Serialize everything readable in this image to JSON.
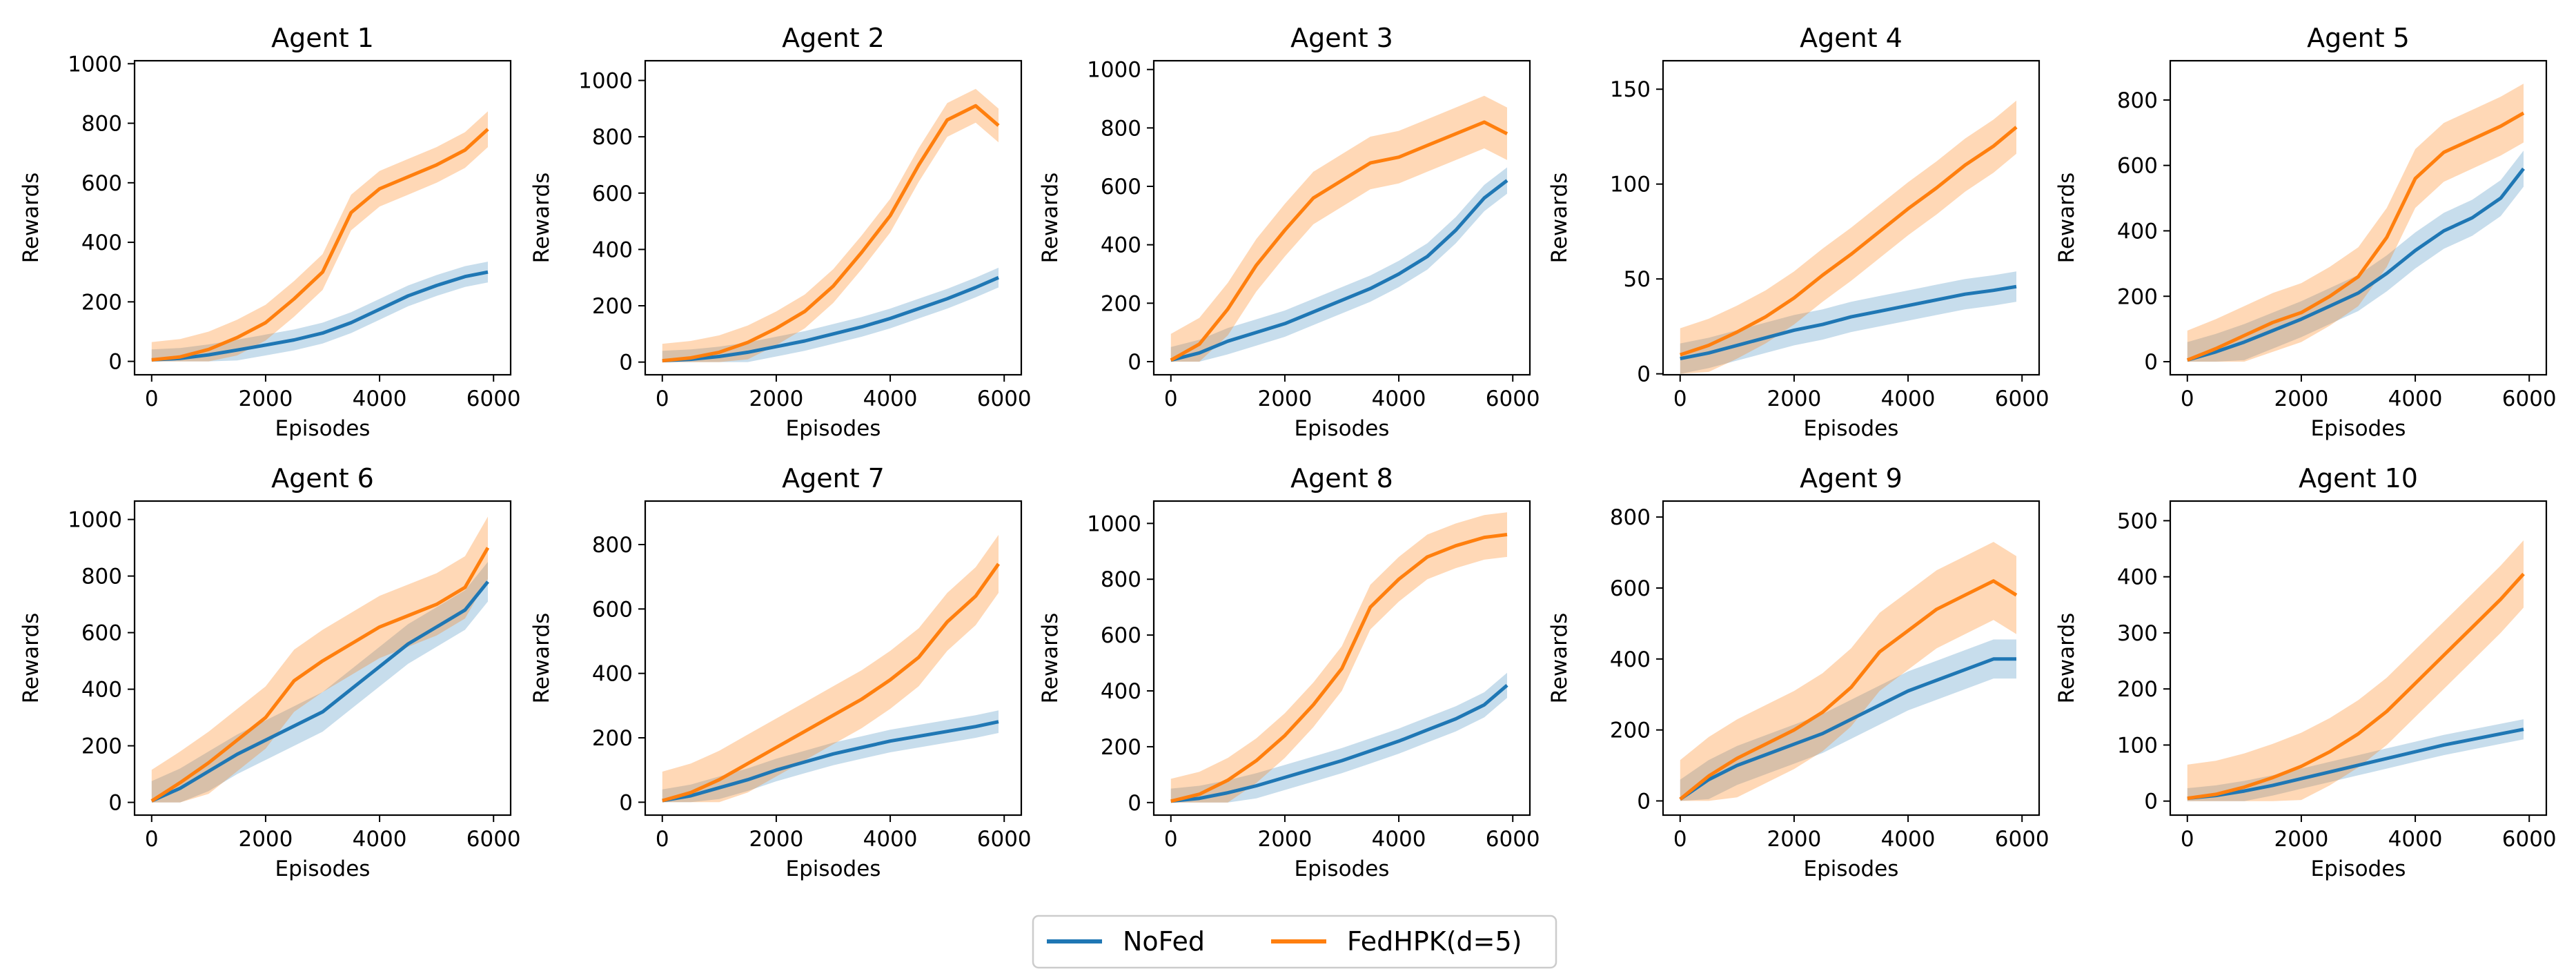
{
  "figure": {
    "colors": {
      "nofed": "#1f77b4",
      "fedhpk": "#ff7f0e"
    },
    "legend": {
      "placement": "bottom-center",
      "entries": [
        "NoFed",
        "FedHPK(d=5)"
      ]
    }
  },
  "chart_data": [
    {
      "type": "line",
      "title": "Agent 1",
      "xlabel": "Episodes",
      "ylabel": "Rewards",
      "xlim": [
        -300,
        6300
      ],
      "ylim": [
        -45,
        1010
      ],
      "xticks": [
        0,
        2000,
        4000,
        6000
      ],
      "yticks": [
        0,
        200,
        400,
        600,
        800,
        1000
      ],
      "grid": false,
      "x": [
        0,
        500,
        1000,
        1500,
        2000,
        2500,
        3000,
        3500,
        4000,
        4500,
        5000,
        5500,
        5900
      ],
      "series": [
        {
          "name": "NoFed",
          "values": [
            5,
            10,
            22,
            38,
            55,
            72,
            95,
            130,
            175,
            220,
            255,
            285,
            300
          ],
          "band": 35
        },
        {
          "name": "FedHPK(d=5)",
          "values": [
            5,
            15,
            40,
            80,
            130,
            210,
            300,
            500,
            580,
            620,
            660,
            710,
            780
          ],
          "band": 60
        }
      ]
    },
    {
      "type": "line",
      "title": "Agent 2",
      "xlabel": "Episodes",
      "ylabel": "Rewards",
      "xlim": [
        -300,
        6300
      ],
      "ylim": [
        -45,
        1070
      ],
      "xticks": [
        0,
        2000,
        4000,
        6000
      ],
      "yticks": [
        0,
        200,
        400,
        600,
        800,
        1000
      ],
      "grid": false,
      "x": [
        0,
        500,
        1000,
        1500,
        2000,
        2500,
        3000,
        3500,
        4000,
        4500,
        5000,
        5500,
        5900
      ],
      "series": [
        {
          "name": "NoFed",
          "values": [
            5,
            10,
            20,
            35,
            55,
            75,
            100,
            125,
            155,
            190,
            225,
            265,
            300
          ],
          "band": 35
        },
        {
          "name": "FedHPK(d=5)",
          "values": [
            5,
            15,
            35,
            70,
            120,
            180,
            270,
            390,
            520,
            700,
            860,
            910,
            840
          ],
          "band": 60
        }
      ]
    },
    {
      "type": "line",
      "title": "Agent 3",
      "xlabel": "Episodes",
      "ylabel": "Rewards",
      "xlim": [
        -300,
        6300
      ],
      "ylim": [
        -45,
        1030
      ],
      "xticks": [
        0,
        2000,
        4000,
        6000
      ],
      "yticks": [
        0,
        200,
        400,
        600,
        800,
        1000
      ],
      "grid": false,
      "x": [
        0,
        500,
        1000,
        1500,
        2000,
        2500,
        3000,
        3500,
        4000,
        4500,
        5000,
        5500,
        5900
      ],
      "series": [
        {
          "name": "NoFed",
          "values": [
            5,
            30,
            70,
            100,
            130,
            170,
            210,
            250,
            300,
            360,
            450,
            560,
            620
          ],
          "band": 45
        },
        {
          "name": "FedHPK(d=5)",
          "values": [
            5,
            60,
            180,
            330,
            450,
            560,
            620,
            680,
            700,
            740,
            780,
            820,
            780
          ],
          "band": 90
        }
      ]
    },
    {
      "type": "line",
      "title": "Agent 4",
      "xlabel": "Episodes",
      "ylabel": "Rewards",
      "xlim": [
        -300,
        6300
      ],
      "ylim": [
        -0.5,
        165
      ],
      "xticks": [
        0,
        2000,
        4000,
        6000
      ],
      "yticks": [
        0,
        50,
        100,
        150
      ],
      "grid": false,
      "x": [
        0,
        500,
        1000,
        1500,
        2000,
        2500,
        3000,
        3500,
        4000,
        4500,
        5000,
        5500,
        5900
      ],
      "series": [
        {
          "name": "NoFed",
          "values": [
            8,
            11,
            15,
            19,
            23,
            26,
            30,
            33,
            36,
            39,
            42,
            44,
            46
          ],
          "band": 8
        },
        {
          "name": "FedHPK(d=5)",
          "values": [
            10,
            15,
            22,
            30,
            40,
            52,
            63,
            75,
            87,
            98,
            110,
            120,
            130
          ],
          "band": 14
        }
      ]
    },
    {
      "type": "line",
      "title": "Agent 5",
      "xlabel": "Episodes",
      "ylabel": "Rewards",
      "xlim": [
        -300,
        6300
      ],
      "ylim": [
        -40,
        920
      ],
      "xticks": [
        0,
        2000,
        4000,
        6000
      ],
      "yticks": [
        0,
        200,
        400,
        600,
        800
      ],
      "grid": false,
      "x": [
        0,
        500,
        1000,
        1500,
        2000,
        2500,
        3000,
        3500,
        4000,
        4500,
        5000,
        5500,
        5900
      ],
      "series": [
        {
          "name": "NoFed",
          "values": [
            5,
            30,
            60,
            95,
            130,
            170,
            210,
            270,
            340,
            400,
            440,
            500,
            590
          ],
          "band": 55
        },
        {
          "name": "FedHPK(d=5)",
          "values": [
            5,
            40,
            80,
            120,
            150,
            200,
            260,
            380,
            560,
            640,
            680,
            720,
            760
          ],
          "band": 90
        }
      ]
    },
    {
      "type": "line",
      "title": "Agent 6",
      "xlabel": "Episodes",
      "ylabel": "Rewards",
      "xlim": [
        -300,
        6300
      ],
      "ylim": [
        -45,
        1065
      ],
      "xticks": [
        0,
        2000,
        4000,
        6000
      ],
      "yticks": [
        0,
        200,
        400,
        600,
        800,
        1000
      ],
      "grid": false,
      "x": [
        0,
        500,
        1000,
        1500,
        2000,
        2500,
        3000,
        3500,
        4000,
        4500,
        5000,
        5500,
        5900
      ],
      "series": [
        {
          "name": "NoFed",
          "values": [
            5,
            50,
            110,
            170,
            220,
            270,
            320,
            400,
            480,
            560,
            620,
            680,
            780
          ],
          "band": 70
        },
        {
          "name": "FedHPK(d=5)",
          "values": [
            5,
            70,
            140,
            220,
            300,
            430,
            500,
            560,
            620,
            660,
            700,
            760,
            900
          ],
          "band": 110
        }
      ]
    },
    {
      "type": "line",
      "title": "Agent 7",
      "xlabel": "Episodes",
      "ylabel": "Rewards",
      "xlim": [
        -300,
        6300
      ],
      "ylim": [
        -40,
        935
      ],
      "xticks": [
        0,
        2000,
        4000,
        6000
      ],
      "yticks": [
        0,
        200,
        400,
        600,
        800
      ],
      "grid": false,
      "x": [
        0,
        500,
        1000,
        1500,
        2000,
        2500,
        3000,
        3500,
        4000,
        4500,
        5000,
        5500,
        5900
      ],
      "series": [
        {
          "name": "NoFed",
          "values": [
            5,
            20,
            45,
            70,
            100,
            125,
            150,
            170,
            190,
            205,
            220,
            235,
            250
          ],
          "band": 35
        },
        {
          "name": "FedHPK(d=5)",
          "values": [
            5,
            30,
            70,
            120,
            170,
            220,
            270,
            320,
            380,
            450,
            560,
            640,
            740
          ],
          "band": 90
        }
      ]
    },
    {
      "type": "line",
      "title": "Agent 8",
      "xlabel": "Episodes",
      "ylabel": "Rewards",
      "xlim": [
        -300,
        6300
      ],
      "ylim": [
        -45,
        1080
      ],
      "xticks": [
        0,
        2000,
        4000,
        6000
      ],
      "yticks": [
        0,
        200,
        400,
        600,
        800,
        1000
      ],
      "grid": false,
      "x": [
        0,
        500,
        1000,
        1500,
        2000,
        2500,
        3000,
        3500,
        4000,
        4500,
        5000,
        5500,
        5900
      ],
      "series": [
        {
          "name": "NoFed",
          "values": [
            5,
            15,
            35,
            60,
            90,
            120,
            150,
            185,
            220,
            260,
            300,
            350,
            420
          ],
          "band": 45
        },
        {
          "name": "FedHPK(d=5)",
          "values": [
            5,
            30,
            80,
            150,
            240,
            350,
            480,
            700,
            800,
            880,
            920,
            950,
            960
          ],
          "band": 80
        }
      ]
    },
    {
      "type": "line",
      "title": "Agent 9",
      "xlabel": "Episodes",
      "ylabel": "Rewards",
      "xlim": [
        -300,
        6300
      ],
      "ylim": [
        -40,
        845
      ],
      "xticks": [
        0,
        2000,
        4000,
        6000
      ],
      "yticks": [
        0,
        200,
        400,
        600,
        800
      ],
      "grid": false,
      "x": [
        0,
        500,
        1000,
        1500,
        2000,
        2500,
        3000,
        3500,
        4000,
        4500,
        5000,
        5500,
        5900
      ],
      "series": [
        {
          "name": "NoFed",
          "values": [
            5,
            60,
            100,
            130,
            160,
            190,
            230,
            270,
            310,
            340,
            370,
            400,
            400
          ],
          "band": 55
        },
        {
          "name": "FedHPK(d=5)",
          "values": [
            5,
            70,
            120,
            160,
            200,
            250,
            320,
            420,
            480,
            540,
            580,
            620,
            580
          ],
          "band": 110
        }
      ]
    },
    {
      "type": "line",
      "title": "Agent 10",
      "xlabel": "Episodes",
      "ylabel": "Rewards",
      "xlim": [
        -300,
        6300
      ],
      "ylim": [
        -25,
        535
      ],
      "xticks": [
        0,
        2000,
        4000,
        6000
      ],
      "yticks": [
        0,
        100,
        200,
        300,
        400,
        500
      ],
      "grid": false,
      "x": [
        0,
        500,
        1000,
        1500,
        2000,
        2500,
        3000,
        3500,
        4000,
        4500,
        5000,
        5500,
        5900
      ],
      "series": [
        {
          "name": "NoFed",
          "values": [
            5,
            10,
            18,
            28,
            40,
            52,
            64,
            76,
            88,
            100,
            110,
            120,
            128
          ],
          "band": 18
        },
        {
          "name": "FedHPK(d=5)",
          "values": [
            5,
            12,
            25,
            42,
            62,
            88,
            120,
            160,
            210,
            260,
            310,
            360,
            405
          ],
          "band": 60
        }
      ]
    }
  ]
}
